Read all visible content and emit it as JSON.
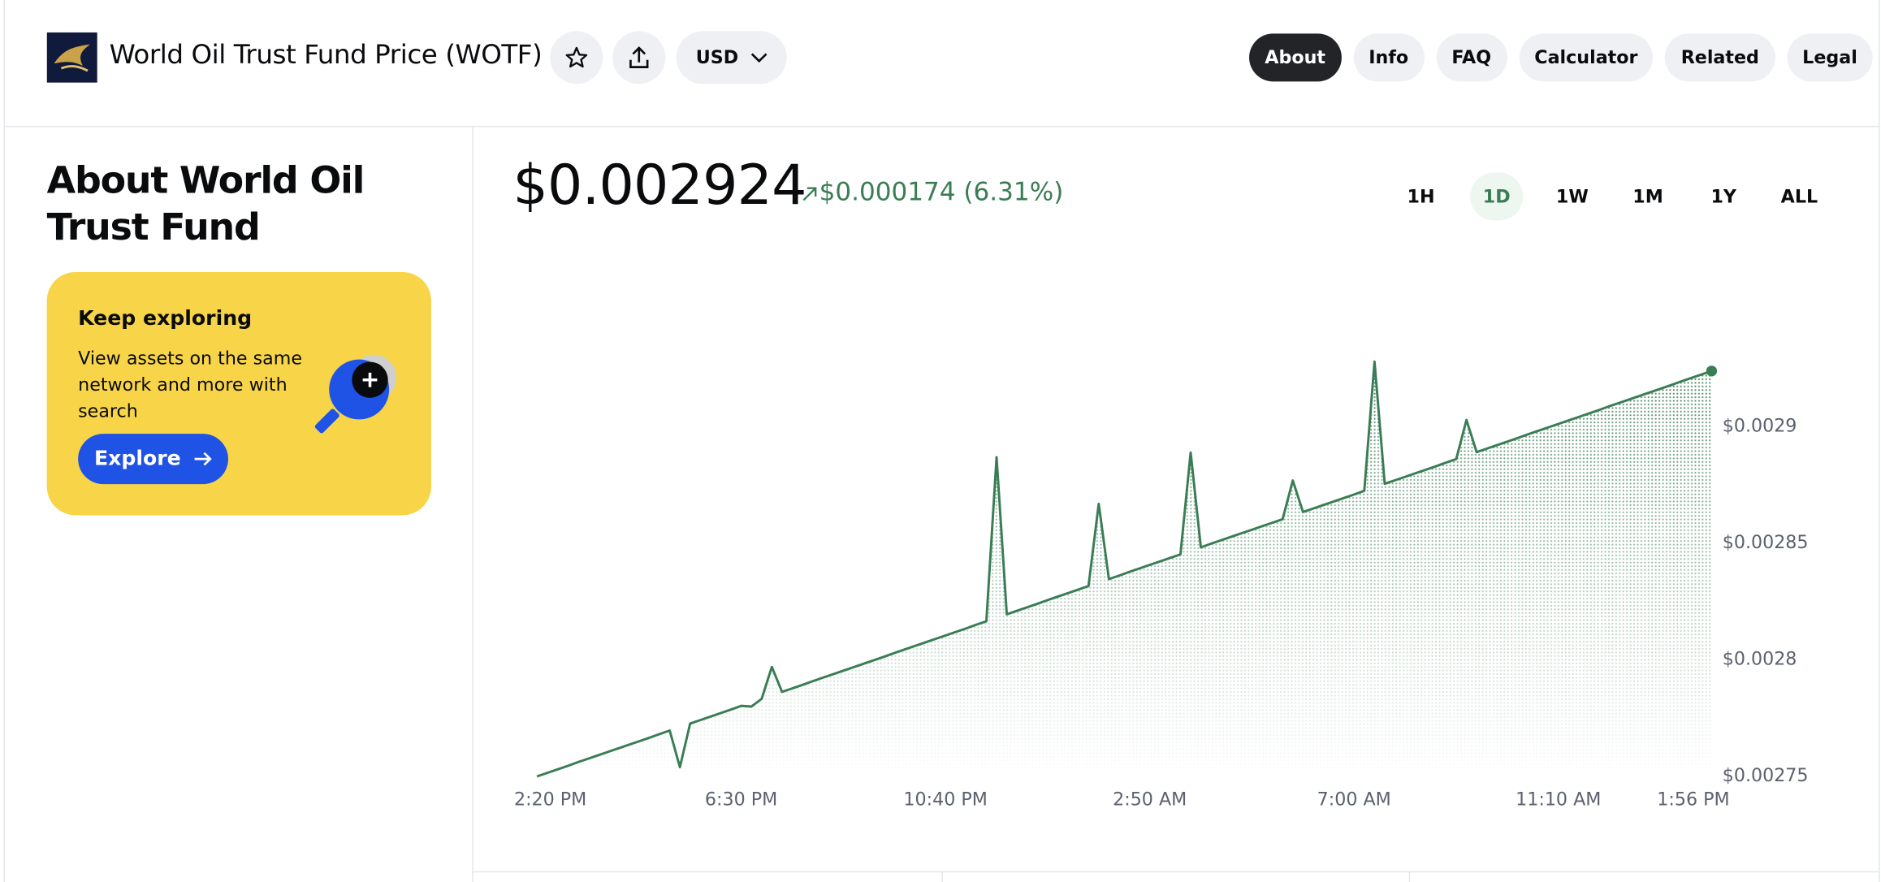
{
  "header": {
    "title": "World Oil Trust Fund Price (WOTF)",
    "currency": "USD"
  },
  "nav": [
    "About",
    "Info",
    "FAQ",
    "Calculator",
    "Related",
    "Legal"
  ],
  "about": {
    "heading": "About World Oil Trust Fund",
    "card": {
      "title": "Keep exploring",
      "text": "View assets on the same network and more with search",
      "button": "Explore"
    }
  },
  "price": {
    "value": "$0.002924",
    "change": "$0.000174 (6.31%)"
  },
  "ranges": [
    "1H",
    "1D",
    "1W",
    "1M",
    "1Y",
    "ALL"
  ],
  "chart_data": {
    "type": "line",
    "categories": [
      "2:20 PM",
      null,
      null,
      null,
      null,
      null,
      null,
      null,
      null,
      null,
      null,
      null,
      null,
      null,
      null,
      null,
      null,
      null,
      null,
      null,
      "6:30 PM",
      null,
      null,
      null,
      null,
      null,
      null,
      null,
      null,
      null,
      null,
      null,
      null,
      null,
      null,
      null,
      null,
      null,
      null,
      null,
      "10:40 PM",
      null,
      null,
      null,
      null,
      null,
      null,
      null,
      null,
      null,
      null,
      null,
      null,
      null,
      null,
      null,
      null,
      null,
      null,
      null,
      "2:50 AM",
      null,
      null,
      null,
      null,
      null,
      null,
      null,
      null,
      null,
      null,
      null,
      null,
      null,
      null,
      null,
      null,
      null,
      null,
      null,
      "7:00 AM",
      null,
      null,
      null,
      null,
      null,
      null,
      null,
      null,
      null,
      null,
      null,
      null,
      null,
      null,
      null,
      null,
      null,
      null,
      null,
      "11:10 AM",
      null,
      null,
      null,
      null,
      null,
      null,
      null,
      null,
      null,
      null,
      null,
      null,
      null,
      null,
      "1:56 PM"
    ],
    "values": [
      0.002749,
      0.0027505,
      0.002752,
      0.0027535,
      0.0027551,
      0.0027566,
      0.0027581,
      0.0027596,
      0.0027611,
      0.0027626,
      0.0027641,
      0.0027656,
      0.0027672,
      0.0027687,
      0.002753,
      0.0027717,
      0.0027732,
      0.0027747,
      0.0027762,
      0.0027777,
      0.0027793,
      0.002779,
      0.0027823,
      0.002796,
      0.0027853,
      0.0027868,
      0.0027883,
      0.0027899,
      0.0027914,
      0.0027929,
      0.0027944,
      0.0027959,
      0.0027974,
      0.0027989,
      0.0028004,
      0.002802,
      0.0028035,
      0.002805,
      0.0028065,
      0.002808,
      0.0028095,
      0.002811,
      0.0028125,
      0.0028141,
      0.0028156,
      0.002886,
      0.0028186,
      0.0028201,
      0.0028216,
      0.0028231,
      0.0028247,
      0.0028262,
      0.0028277,
      0.0028292,
      0.0028307,
      0.002866,
      0.0028337,
      0.0028352,
      0.0028368,
      0.0028383,
      0.0028398,
      0.0028413,
      0.0028428,
      0.0028443,
      0.002888,
      0.0028473,
      0.0028489,
      0.0028504,
      0.0028519,
      0.0028534,
      0.0028549,
      0.0028564,
      0.0028579,
      0.0028594,
      0.002876,
      0.0028625,
      0.002864,
      0.0028655,
      0.002867,
      0.0028685,
      0.00287,
      0.0028716,
      0.002927,
      0.0028746,
      0.0028761,
      0.0028776,
      0.0028791,
      0.0028806,
      0.0028821,
      0.0028837,
      0.0028852,
      0.002902,
      0.0028882,
      0.0028897,
      0.0028912,
      0.0028927,
      0.0028942,
      0.0028958,
      0.0028973,
      0.0028988,
      0.0029003,
      0.0029018,
      0.0029033,
      0.0029048,
      0.0029063,
      0.0029079,
      0.0029094,
      0.0029109,
      0.0029124,
      0.0029139,
      0.0029154,
      0.0029169,
      0.0029185,
      0.00292,
      0.0029215,
      0.002923
    ],
    "color": "#3a7d55",
    "ylim": [
      0.00275,
      0.00293
    ],
    "yticks": [
      {
        "value": 0.00275,
        "label": "$0.00275"
      },
      {
        "value": 0.0028,
        "label": "$0.0028"
      },
      {
        "value": 0.00285,
        "label": "$0.00285"
      },
      {
        "value": 0.0029,
        "label": "$0.0029"
      }
    ],
    "grid": false
  }
}
